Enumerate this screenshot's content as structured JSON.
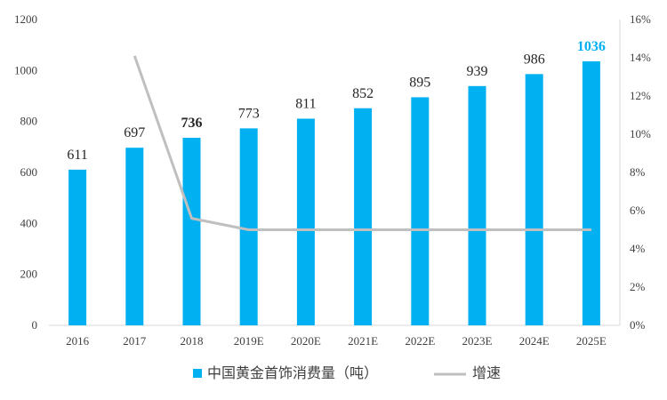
{
  "chart_data": {
    "type": "bar",
    "categories": [
      "2016",
      "2017",
      "2018",
      "2019E",
      "2020E",
      "2021E",
      "2022E",
      "2023E",
      "2024E",
      "2025E"
    ],
    "series": [
      {
        "name": "中国黄金首饰消费量（吨）",
        "type": "bar",
        "axis": "left",
        "color": "#00B0F0",
        "values": [
          611,
          697,
          736,
          773,
          811,
          852,
          895,
          939,
          986,
          1036
        ],
        "labels": [
          "611",
          "697",
          "736",
          "773",
          "811",
          "852",
          "895",
          "939",
          "986",
          "1036"
        ]
      },
      {
        "name": "增速",
        "type": "line",
        "axis": "right",
        "color": "#BFBFBF",
        "values": [
          null,
          14.1,
          5.6,
          5.0,
          5.0,
          5.0,
          5.0,
          5.0,
          5.0,
          5.0
        ]
      }
    ],
    "yleft": {
      "range": [
        0,
        1200
      ],
      "ticks": [
        0,
        200,
        400,
        600,
        800,
        1000,
        1200
      ],
      "tick_labels": [
        "0",
        "200",
        "400",
        "600",
        "800",
        "1000",
        "1200"
      ]
    },
    "yright": {
      "range": [
        0,
        16
      ],
      "ticks": [
        0,
        2,
        4,
        6,
        8,
        10,
        12,
        14,
        16
      ],
      "tick_labels": [
        "0%",
        "2%",
        "4%",
        "6%",
        "8%",
        "10%",
        "12%",
        "14%",
        "16%"
      ]
    },
    "bold_labels": [
      "736"
    ],
    "accent_labels": [
      "1036"
    ],
    "accent_color": "#00B0F0",
    "grid": false,
    "legend_position": "bottom"
  }
}
